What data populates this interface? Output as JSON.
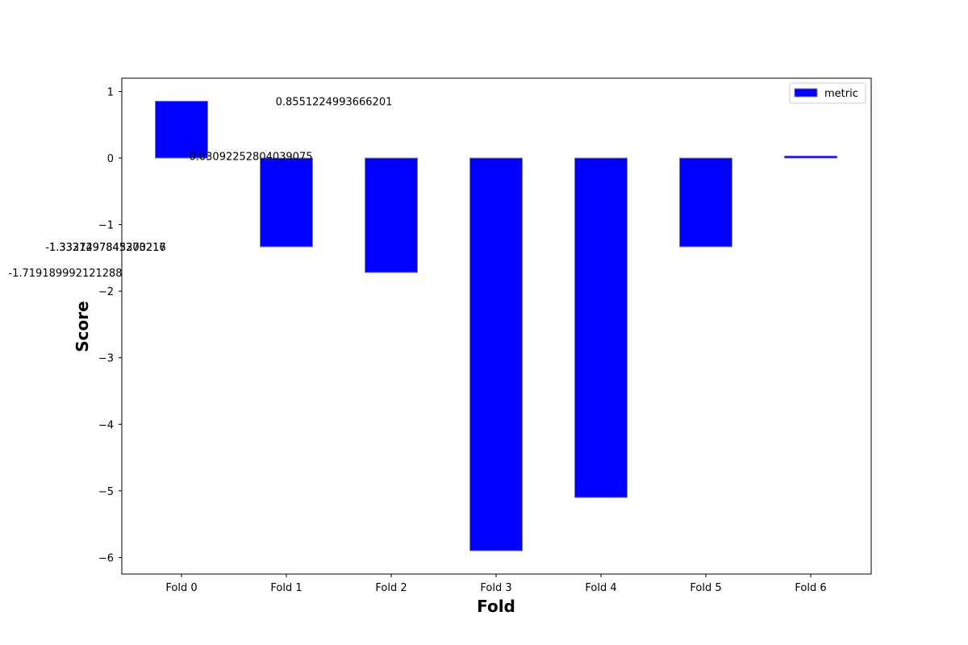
{
  "chart_data": {
    "type": "bar",
    "categories": [
      "Fold 0",
      "Fold 1",
      "Fold 2",
      "Fold 3",
      "Fold 4",
      "Fold 5",
      "Fold 6"
    ],
    "series": [
      {
        "name": "metric",
        "color": "#0000ff",
        "edge_color": "#808080",
        "values": [
          0.8551224993666201,
          -1.3331297843270216,
          -1.719189992121288,
          -5.9,
          -5.1,
          -1.3327497845303218,
          0.03092252804039075
        ]
      }
    ],
    "data_labels": [
      "0.8551224993666201",
      "0.03092252804039075",
      "-1.3331297843270216",
      "-1.3327497845303217",
      "-1.719189992121288"
    ],
    "xlabel": "Fold",
    "ylabel": "Score",
    "ylim": [
      -6.25,
      1.2
    ],
    "yticks": [
      1,
      0,
      -1,
      -2,
      -3,
      -4,
      -5,
      -6
    ],
    "ytick_labels": [
      "1",
      "0",
      "−1",
      "−2",
      "−3",
      "−4",
      "−5",
      "−6"
    ],
    "grid": false,
    "legend_position": "top-right"
  }
}
